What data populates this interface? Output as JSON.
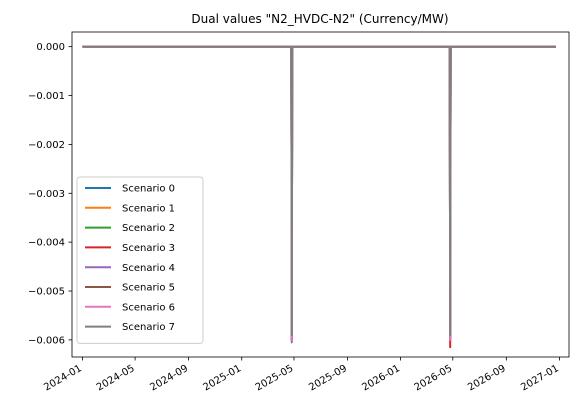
{
  "chart_data": {
    "type": "line",
    "title": "Dual values \"N2_HVDC-N2\" (Currency/MW)",
    "xlabel": "",
    "ylabel": "",
    "x_range": [
      "2023-12-08",
      "2027-01-23"
    ],
    "ylim": [
      -0.00635,
      0.0003
    ],
    "x_ticks": [
      "2024-01",
      "2024-05",
      "2024-09",
      "2025-01",
      "2025-05",
      "2025-09",
      "2026-01",
      "2026-05",
      "2026-09",
      "2027-01"
    ],
    "y_ticks": [
      0.0,
      -0.001,
      -0.002,
      -0.003,
      -0.004,
      -0.005,
      -0.006
    ],
    "y_tick_labels": [
      "0.000",
      "−0.001",
      "−0.002",
      "−0.003",
      "−0.004",
      "−0.005",
      "−0.006"
    ],
    "grid": false,
    "legend": "lower-left",
    "series": [
      {
        "name": "Scenario 0",
        "color": "#1f77b4",
        "points": [
          [
            "2024-01-01",
            0
          ],
          [
            "2025-04-25",
            0
          ],
          [
            "2025-04-26",
            -0.006
          ],
          [
            "2025-04-27",
            0
          ],
          [
            "2026-04-24",
            0
          ],
          [
            "2026-04-25",
            -0.006
          ],
          [
            "2026-04-26",
            0
          ],
          [
            "2026-12-24",
            0
          ]
        ]
      },
      {
        "name": "Scenario 1",
        "color": "#ff7f0e",
        "points": [
          [
            "2024-01-01",
            0
          ],
          [
            "2025-04-25",
            0
          ],
          [
            "2025-04-26",
            -0.006
          ],
          [
            "2025-04-27",
            0
          ],
          [
            "2026-04-24",
            0
          ],
          [
            "2026-04-25",
            -0.006
          ],
          [
            "2026-04-26",
            0
          ],
          [
            "2026-12-24",
            0
          ]
        ]
      },
      {
        "name": "Scenario 2",
        "color": "#2ca02c",
        "points": [
          [
            "2024-01-01",
            0
          ],
          [
            "2025-04-25",
            0
          ],
          [
            "2025-04-26",
            -0.006
          ],
          [
            "2025-04-27",
            0
          ],
          [
            "2026-04-24",
            0
          ],
          [
            "2026-04-25",
            -0.006
          ],
          [
            "2026-04-26",
            0
          ],
          [
            "2026-12-24",
            0
          ]
        ]
      },
      {
        "name": "Scenario 3",
        "color": "#d62728",
        "points": [
          [
            "2024-01-01",
            0
          ],
          [
            "2025-04-25",
            0
          ],
          [
            "2025-04-26",
            -0.006
          ],
          [
            "2025-04-27",
            0
          ],
          [
            "2026-04-24",
            0
          ],
          [
            "2026-04-25",
            -0.00615
          ],
          [
            "2026-04-26",
            0
          ],
          [
            "2026-12-24",
            0
          ]
        ]
      },
      {
        "name": "Scenario 4",
        "color": "#9467bd",
        "points": [
          [
            "2024-01-01",
            0
          ],
          [
            "2025-04-25",
            0
          ],
          [
            "2025-04-26",
            -0.00605
          ],
          [
            "2025-04-27",
            0
          ],
          [
            "2026-04-24",
            0
          ],
          [
            "2026-04-25",
            -0.006
          ],
          [
            "2026-04-26",
            0
          ],
          [
            "2026-12-24",
            0
          ]
        ]
      },
      {
        "name": "Scenario 5",
        "color": "#8c564b",
        "points": [
          [
            "2024-01-01",
            0
          ],
          [
            "2025-04-25",
            0
          ],
          [
            "2025-04-26",
            -0.006
          ],
          [
            "2025-04-27",
            0
          ],
          [
            "2026-04-24",
            0
          ],
          [
            "2026-04-25",
            -0.006
          ],
          [
            "2026-04-26",
            0
          ],
          [
            "2026-12-24",
            0
          ]
        ]
      },
      {
        "name": "Scenario 6",
        "color": "#e377c2",
        "points": [
          [
            "2024-01-01",
            0
          ],
          [
            "2025-04-25",
            0
          ],
          [
            "2025-04-26",
            -0.006
          ],
          [
            "2025-04-27",
            0
          ],
          [
            "2026-04-24",
            0
          ],
          [
            "2026-04-25",
            -0.006
          ],
          [
            "2026-04-26",
            0
          ],
          [
            "2026-12-24",
            0
          ]
        ]
      },
      {
        "name": "Scenario 7",
        "color": "#7f7f7f",
        "points": [
          [
            "2024-01-01",
            0
          ],
          [
            "2025-04-25",
            0
          ],
          [
            "2025-04-26",
            -0.0059
          ],
          [
            "2025-04-27",
            0
          ],
          [
            "2026-04-24",
            0
          ],
          [
            "2026-04-25",
            -0.0059
          ],
          [
            "2026-04-26",
            0
          ],
          [
            "2026-12-24",
            0
          ]
        ]
      }
    ]
  }
}
